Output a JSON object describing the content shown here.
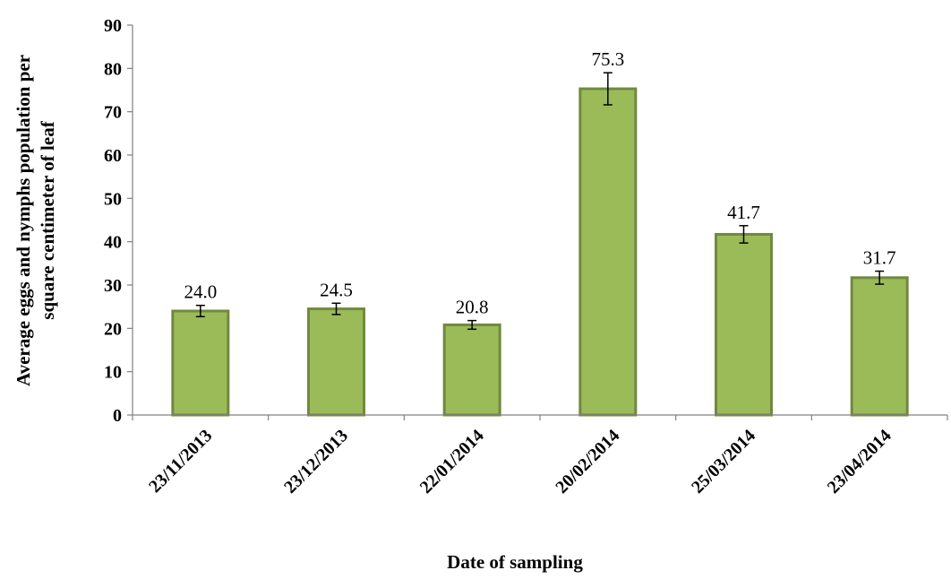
{
  "chart_data": {
    "type": "bar",
    "categories": [
      "23/11/2013",
      "23/12/2013",
      "22/01/2014",
      "20/02/2014",
      "25/03/2014",
      "23/04/2014"
    ],
    "values": [
      24.0,
      24.5,
      20.8,
      75.3,
      41.7,
      31.7
    ],
    "data_labels": [
      "24.0",
      "24.5",
      "20.8",
      "75.3",
      "41.7",
      "31.7"
    ],
    "error": [
      1.3,
      1.3,
      1.0,
      3.7,
      2.0,
      1.5
    ],
    "xlabel": "Date of sampling",
    "ylabel_lines": [
      "Average eggs and nymphs population per",
      "square  centimeter of leaf"
    ],
    "ylim": [
      0,
      90
    ],
    "yticks": [
      0,
      10,
      20,
      30,
      40,
      50,
      60,
      70,
      80,
      90
    ],
    "grid": false,
    "colors": {
      "bar_fill": "#9bbb59",
      "bar_edge": "#71893f"
    }
  }
}
